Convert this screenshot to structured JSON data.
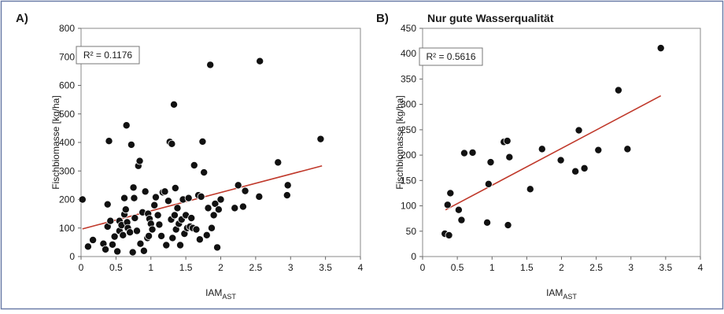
{
  "chart_data": [
    {
      "type": "scatter",
      "panel": "A)",
      "title": "",
      "xlabel": "IAM",
      "xlabel_sub": "AST",
      "ylabel": "Fischbiomasse [kg/ha]",
      "xlim": [
        0,
        4
      ],
      "ylim": [
        0,
        800
      ],
      "xticks": [
        "0",
        "0.5",
        "1",
        "1.5",
        "2",
        "2.5",
        "3",
        "3.5",
        "4"
      ],
      "yticks": [
        "0",
        "100",
        "200",
        "300",
        "400",
        "500",
        "600",
        "700",
        "800"
      ],
      "grid": false,
      "annotation": "R² = 0.1176",
      "trendline": {
        "x": [
          0.02,
          3.45
        ],
        "y": [
          97,
          318
        ],
        "color": "#c0392b"
      },
      "point_color": "#111111",
      "points": [
        [
          0.02,
          200
        ],
        [
          0.1,
          35
        ],
        [
          0.17,
          58
        ],
        [
          0.32,
          45
        ],
        [
          0.35,
          25
        ],
        [
          0.38,
          105
        ],
        [
          0.38,
          183
        ],
        [
          0.4,
          405
        ],
        [
          0.42,
          125
        ],
        [
          0.45,
          42
        ],
        [
          0.48,
          70
        ],
        [
          0.52,
          18
        ],
        [
          0.55,
          90
        ],
        [
          0.55,
          125
        ],
        [
          0.58,
          110
        ],
        [
          0.6,
          75
        ],
        [
          0.62,
          148
        ],
        [
          0.62,
          205
        ],
        [
          0.64,
          165
        ],
        [
          0.65,
          460
        ],
        [
          0.66,
          120
        ],
        [
          0.67,
          100
        ],
        [
          0.7,
          85
        ],
        [
          0.72,
          392
        ],
        [
          0.74,
          15
        ],
        [
          0.75,
          242
        ],
        [
          0.76,
          205
        ],
        [
          0.77,
          135
        ],
        [
          0.8,
          90
        ],
        [
          0.82,
          318
        ],
        [
          0.84,
          335
        ],
        [
          0.85,
          45
        ],
        [
          0.88,
          155
        ],
        [
          0.9,
          20
        ],
        [
          0.92,
          228
        ],
        [
          0.95,
          65
        ],
        [
          0.96,
          150
        ],
        [
          0.97,
          72
        ],
        [
          0.98,
          132
        ],
        [
          1.0,
          115
        ],
        [
          1.02,
          95
        ],
        [
          1.05,
          180
        ],
        [
          1.07,
          208
        ],
        [
          1.1,
          145
        ],
        [
          1.12,
          112
        ],
        [
          1.15,
          72
        ],
        [
          1.17,
          225
        ],
        [
          1.2,
          228
        ],
        [
          1.22,
          40
        ],
        [
          1.25,
          195
        ],
        [
          1.27,
          402
        ],
        [
          1.29,
          130
        ],
        [
          1.3,
          395
        ],
        [
          1.31,
          65
        ],
        [
          1.33,
          533
        ],
        [
          1.34,
          145
        ],
        [
          1.35,
          240
        ],
        [
          1.36,
          95
        ],
        [
          1.38,
          170
        ],
        [
          1.4,
          115
        ],
        [
          1.42,
          40
        ],
        [
          1.44,
          130
        ],
        [
          1.46,
          200
        ],
        [
          1.48,
          80
        ],
        [
          1.5,
          145
        ],
        [
          1.52,
          100
        ],
        [
          1.54,
          205
        ],
        [
          1.56,
          105
        ],
        [
          1.58,
          135
        ],
        [
          1.6,
          100
        ],
        [
          1.62,
          320
        ],
        [
          1.65,
          95
        ],
        [
          1.68,
          215
        ],
        [
          1.7,
          60
        ],
        [
          1.72,
          210
        ],
        [
          1.74,
          403
        ],
        [
          1.76,
          295
        ],
        [
          1.8,
          75
        ],
        [
          1.82,
          170
        ],
        [
          1.85,
          672
        ],
        [
          1.87,
          100
        ],
        [
          1.9,
          145
        ],
        [
          1.92,
          185
        ],
        [
          1.95,
          32
        ],
        [
          1.97,
          165
        ],
        [
          2.0,
          200
        ],
        [
          2.2,
          170
        ],
        [
          2.25,
          250
        ],
        [
          2.32,
          175
        ],
        [
          2.35,
          230
        ],
        [
          2.55,
          210
        ],
        [
          2.56,
          685
        ],
        [
          2.82,
          330
        ],
        [
          2.95,
          215
        ],
        [
          2.96,
          250
        ],
        [
          3.43,
          412
        ]
      ]
    },
    {
      "type": "scatter",
      "panel": "B)",
      "title": "Nur gute Wasserqualität",
      "xlabel": "IAM",
      "xlabel_sub": "AST",
      "ylabel": "Fischbiomasse [kg/ha]",
      "xlim": [
        0,
        4
      ],
      "ylim": [
        0,
        450
      ],
      "xticks": [
        "0",
        "0.5",
        "1",
        "1.5",
        "2",
        "2.5",
        "3",
        "3.5",
        "4"
      ],
      "yticks": [
        "0",
        "50",
        "100",
        "150",
        "200",
        "250",
        "300",
        "350",
        "400",
        "450"
      ],
      "grid": false,
      "annotation": "R² = 0.5616",
      "trendline": {
        "x": [
          0.33,
          3.43
        ],
        "y": [
          92,
          317
        ],
        "color": "#c0392b"
      },
      "point_color": "#111111",
      "points": [
        [
          0.32,
          45
        ],
        [
          0.36,
          102
        ],
        [
          0.38,
          42
        ],
        [
          0.4,
          125
        ],
        [
          0.52,
          92
        ],
        [
          0.56,
          72
        ],
        [
          0.6,
          204
        ],
        [
          0.72,
          205
        ],
        [
          0.93,
          67
        ],
        [
          0.95,
          143
        ],
        [
          0.98,
          186
        ],
        [
          1.17,
          226
        ],
        [
          1.22,
          228
        ],
        [
          1.23,
          62
        ],
        [
          1.25,
          196
        ],
        [
          1.55,
          133
        ],
        [
          1.72,
          212
        ],
        [
          1.99,
          190
        ],
        [
          2.2,
          168
        ],
        [
          2.25,
          249
        ],
        [
          2.33,
          174
        ],
        [
          2.53,
          210
        ],
        [
          2.82,
          328
        ],
        [
          2.95,
          212
        ],
        [
          3.43,
          411
        ]
      ]
    }
  ]
}
